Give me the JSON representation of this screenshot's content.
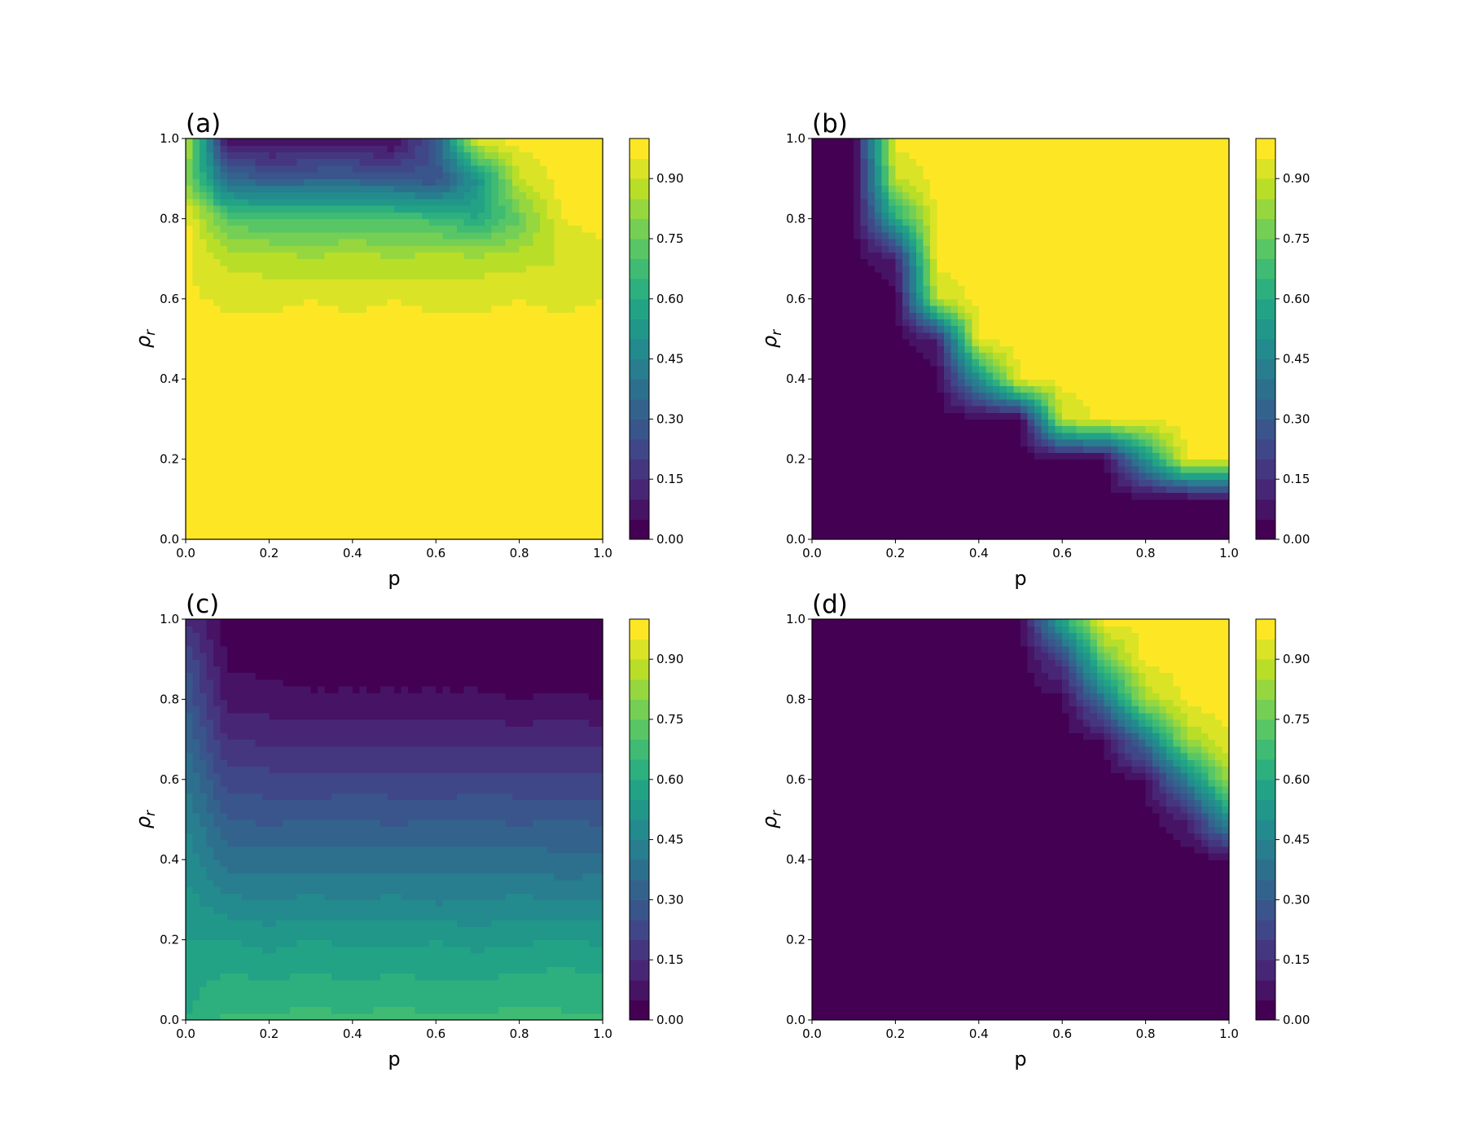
{
  "chart_data": [
    {
      "type": "contour",
      "title": "(a)",
      "xlabel": "p",
      "ylabel": {
        "text": "ρ",
        "sub": "r"
      },
      "colormap": "viridis",
      "x": [
        0,
        0.1,
        0.2,
        0.3,
        0.4,
        0.5,
        0.6,
        0.7,
        0.8,
        0.9,
        1.0
      ],
      "y": [
        0,
        0.1,
        0.2,
        0.3,
        0.4,
        0.5,
        0.6,
        0.7,
        0.8,
        0.9,
        1.0
      ],
      "z": [
        [
          0.97,
          0.97,
          0.97,
          0.97,
          0.97,
          0.97,
          0.97,
          0.97,
          0.97,
          0.97,
          0.97
        ],
        [
          0.97,
          0.97,
          0.97,
          0.97,
          0.97,
          0.97,
          0.97,
          0.97,
          0.97,
          0.97,
          0.97
        ],
        [
          0.97,
          0.97,
          0.97,
          0.97,
          0.97,
          0.97,
          0.97,
          0.97,
          0.97,
          0.97,
          0.97
        ],
        [
          0.97,
          0.97,
          0.97,
          0.97,
          0.97,
          0.97,
          0.97,
          0.97,
          0.97,
          0.97,
          0.97
        ],
        [
          0.97,
          0.97,
          0.97,
          0.97,
          0.97,
          0.97,
          0.97,
          0.97,
          0.97,
          0.97,
          0.97
        ],
        [
          0.97,
          0.97,
          0.97,
          0.97,
          0.97,
          0.97,
          0.97,
          0.97,
          0.97,
          0.97,
          0.97
        ],
        [
          0.96,
          0.94,
          0.94,
          0.95,
          0.94,
          0.95,
          0.94,
          0.94,
          0.95,
          0.94,
          0.95
        ],
        [
          0.96,
          0.88,
          0.87,
          0.86,
          0.87,
          0.86,
          0.87,
          0.87,
          0.88,
          0.9,
          0.93
        ],
        [
          0.97,
          0.72,
          0.7,
          0.7,
          0.71,
          0.7,
          0.68,
          0.6,
          0.75,
          0.95,
          0.97
        ],
        [
          0.8,
          0.35,
          0.3,
          0.32,
          0.32,
          0.3,
          0.25,
          0.5,
          0.9,
          0.97,
          0.97
        ],
        [
          0.9,
          0.05,
          0.04,
          0.04,
          0.04,
          0.03,
          0.3,
          0.95,
          0.97,
          0.97,
          0.97
        ]
      ],
      "xlim": [
        0,
        1.0
      ],
      "ylim": [
        0,
        1.0
      ],
      "xticks": [
        {
          "value": 0,
          "label": "0.0"
        },
        {
          "value": 0.2,
          "label": "0.2"
        },
        {
          "value": 0.4,
          "label": "0.4"
        },
        {
          "value": 0.6,
          "label": "0.6"
        },
        {
          "value": 0.8,
          "label": "0.8"
        },
        {
          "value": 1.0,
          "label": "1.0"
        }
      ],
      "yticks": [
        {
          "value": 0,
          "label": "0.0"
        },
        {
          "value": 0.2,
          "label": "0.2"
        },
        {
          "value": 0.4,
          "label": "0.4"
        },
        {
          "value": 0.6,
          "label": "0.6"
        },
        {
          "value": 0.8,
          "label": "0.8"
        },
        {
          "value": 1.0,
          "label": "1.0"
        }
      ],
      "levels": [
        0,
        0.05,
        0.1,
        0.15,
        0.2,
        0.25,
        0.3,
        0.35,
        0.4,
        0.45,
        0.5,
        0.55,
        0.6,
        0.65,
        0.7,
        0.75,
        0.8,
        0.85,
        0.9,
        0.95,
        1.0
      ],
      "colorbar_ticks": [
        {
          "value": 0,
          "label": "0.00"
        },
        {
          "value": 0.15,
          "label": "0.15"
        },
        {
          "value": 0.3,
          "label": "0.30"
        },
        {
          "value": 0.45,
          "label": "0.45"
        },
        {
          "value": 0.6,
          "label": "0.60"
        },
        {
          "value": 0.75,
          "label": "0.75"
        },
        {
          "value": 0.9,
          "label": "0.90"
        }
      ]
    },
    {
      "type": "contour",
      "title": "(b)",
      "xlabel": "p",
      "ylabel": {
        "text": "ρ",
        "sub": "r"
      },
      "colormap": "viridis",
      "x": [
        0,
        0.1,
        0.2,
        0.3,
        0.4,
        0.5,
        0.6,
        0.7,
        0.8,
        0.9,
        1.0
      ],
      "y": [
        0,
        0.1,
        0.2,
        0.3,
        0.4,
        0.5,
        0.6,
        0.7,
        0.8,
        0.9,
        1.0
      ],
      "z": [
        [
          0.02,
          0.02,
          0.02,
          0.02,
          0.02,
          0.02,
          0.02,
          0.02,
          0.02,
          0.02,
          0.02
        ],
        [
          0.02,
          0.02,
          0.02,
          0.02,
          0.02,
          0.02,
          0.02,
          0.02,
          0.02,
          0.02,
          0.05
        ],
        [
          0.02,
          0.02,
          0.02,
          0.02,
          0.02,
          0.02,
          0.02,
          0.02,
          0.5,
          0.97,
          0.97
        ],
        [
          0.02,
          0.02,
          0.02,
          0.02,
          0.02,
          0.02,
          0.9,
          0.97,
          0.97,
          0.97,
          0.97
        ],
        [
          0.02,
          0.02,
          0.02,
          0.02,
          0.5,
          0.97,
          0.97,
          0.97,
          0.97,
          0.97,
          0.97
        ],
        [
          0.02,
          0.02,
          0.02,
          0.1,
          0.97,
          0.97,
          0.97,
          0.97,
          0.97,
          0.97,
          0.97
        ],
        [
          0.02,
          0.02,
          0.02,
          0.9,
          0.97,
          0.97,
          0.97,
          0.97,
          0.97,
          0.97,
          0.97
        ],
        [
          0.02,
          0.02,
          0.1,
          0.97,
          0.97,
          0.97,
          0.97,
          0.97,
          0.97,
          0.97,
          0.97
        ],
        [
          0.02,
          0.02,
          0.6,
          0.97,
          0.97,
          0.97,
          0.97,
          0.97,
          0.97,
          0.97,
          0.97
        ],
        [
          0.02,
          0.02,
          0.9,
          0.97,
          0.97,
          0.97,
          0.97,
          0.97,
          0.97,
          0.97,
          0.97
        ],
        [
          0.02,
          0.02,
          0.97,
          0.97,
          0.97,
          0.97,
          0.97,
          0.97,
          0.97,
          0.97,
          0.97
        ]
      ],
      "xlim": [
        0,
        1.0
      ],
      "ylim": [
        0,
        1.0
      ],
      "xticks": [
        {
          "value": 0,
          "label": "0.0"
        },
        {
          "value": 0.2,
          "label": "0.2"
        },
        {
          "value": 0.4,
          "label": "0.4"
        },
        {
          "value": 0.6,
          "label": "0.6"
        },
        {
          "value": 0.8,
          "label": "0.8"
        },
        {
          "value": 1.0,
          "label": "1.0"
        }
      ],
      "yticks": [
        {
          "value": 0,
          "label": "0.0"
        },
        {
          "value": 0.2,
          "label": "0.2"
        },
        {
          "value": 0.4,
          "label": "0.4"
        },
        {
          "value": 0.6,
          "label": "0.6"
        },
        {
          "value": 0.8,
          "label": "0.8"
        },
        {
          "value": 1.0,
          "label": "1.0"
        }
      ],
      "levels": [
        0,
        0.05,
        0.1,
        0.15,
        0.2,
        0.25,
        0.3,
        0.35,
        0.4,
        0.45,
        0.5,
        0.55,
        0.6,
        0.65,
        0.7,
        0.75,
        0.8,
        0.85,
        0.9,
        0.95,
        1.0
      ],
      "colorbar_ticks": [
        {
          "value": 0,
          "label": "0.00"
        },
        {
          "value": 0.15,
          "label": "0.15"
        },
        {
          "value": 0.3,
          "label": "0.30"
        },
        {
          "value": 0.45,
          "label": "0.45"
        },
        {
          "value": 0.6,
          "label": "0.60"
        },
        {
          "value": 0.75,
          "label": "0.75"
        },
        {
          "value": 0.9,
          "label": "0.90"
        }
      ]
    },
    {
      "type": "contour",
      "title": "(c)",
      "xlabel": "p",
      "ylabel": {
        "text": "ρ",
        "sub": "r"
      },
      "colormap": "viridis",
      "x": [
        0,
        0.1,
        0.2,
        0.3,
        0.4,
        0.5,
        0.6,
        0.7,
        0.8,
        0.9,
        1.0
      ],
      "y": [
        0,
        0.1,
        0.2,
        0.3,
        0.4,
        0.5,
        0.6,
        0.7,
        0.8,
        0.9,
        1.0
      ],
      "z": [
        [
          0.6,
          0.66,
          0.66,
          0.67,
          0.66,
          0.67,
          0.66,
          0.66,
          0.67,
          0.66,
          0.66
        ],
        [
          0.58,
          0.61,
          0.6,
          0.61,
          0.6,
          0.61,
          0.6,
          0.6,
          0.61,
          0.62,
          0.61
        ],
        [
          0.55,
          0.55,
          0.53,
          0.55,
          0.54,
          0.53,
          0.55,
          0.53,
          0.54,
          0.55,
          0.54
        ],
        [
          0.52,
          0.46,
          0.45,
          0.46,
          0.45,
          0.46,
          0.44,
          0.45,
          0.46,
          0.45,
          0.45
        ],
        [
          0.48,
          0.38,
          0.37,
          0.38,
          0.38,
          0.37,
          0.38,
          0.37,
          0.38,
          0.36,
          0.37
        ],
        [
          0.45,
          0.3,
          0.29,
          0.3,
          0.3,
          0.29,
          0.3,
          0.3,
          0.29,
          0.3,
          0.29
        ],
        [
          0.4,
          0.22,
          0.22,
          0.21,
          0.22,
          0.22,
          0.21,
          0.22,
          0.22,
          0.21,
          0.22
        ],
        [
          0.35,
          0.15,
          0.14,
          0.14,
          0.13,
          0.14,
          0.14,
          0.14,
          0.13,
          0.14,
          0.13
        ],
        [
          0.3,
          0.08,
          0.07,
          0.06,
          0.06,
          0.06,
          0.06,
          0.06,
          0.05,
          0.06,
          0.05
        ],
        [
          0.25,
          0.04,
          0.03,
          0.02,
          0.02,
          0.02,
          0.02,
          0.02,
          0.02,
          0.02,
          0.02
        ],
        [
          0.15,
          0.02,
          0.02,
          0.02,
          0.02,
          0.02,
          0.02,
          0.02,
          0.02,
          0.02,
          0.02
        ]
      ],
      "xlim": [
        0,
        1.0
      ],
      "ylim": [
        0,
        1.0
      ],
      "xticks": [
        {
          "value": 0,
          "label": "0.0"
        },
        {
          "value": 0.2,
          "label": "0.2"
        },
        {
          "value": 0.4,
          "label": "0.4"
        },
        {
          "value": 0.6,
          "label": "0.6"
        },
        {
          "value": 0.8,
          "label": "0.8"
        },
        {
          "value": 1.0,
          "label": "1.0"
        }
      ],
      "yticks": [
        {
          "value": 0,
          "label": "0.0"
        },
        {
          "value": 0.2,
          "label": "0.2"
        },
        {
          "value": 0.4,
          "label": "0.4"
        },
        {
          "value": 0.6,
          "label": "0.6"
        },
        {
          "value": 0.8,
          "label": "0.8"
        },
        {
          "value": 1.0,
          "label": "1.0"
        }
      ],
      "levels": [
        0,
        0.05,
        0.1,
        0.15,
        0.2,
        0.25,
        0.3,
        0.35,
        0.4,
        0.45,
        0.5,
        0.55,
        0.6,
        0.65,
        0.7,
        0.75,
        0.8,
        0.85,
        0.9,
        0.95,
        1.0
      ],
      "colorbar_ticks": [
        {
          "value": 0,
          "label": "0.00"
        },
        {
          "value": 0.15,
          "label": "0.15"
        },
        {
          "value": 0.3,
          "label": "0.30"
        },
        {
          "value": 0.45,
          "label": "0.45"
        },
        {
          "value": 0.6,
          "label": "0.60"
        },
        {
          "value": 0.75,
          "label": "0.75"
        },
        {
          "value": 0.9,
          "label": "0.90"
        }
      ]
    },
    {
      "type": "contour",
      "title": "(d)",
      "xlabel": "p",
      "ylabel": {
        "text": "ρ",
        "sub": "r"
      },
      "colormap": "viridis",
      "x": [
        0,
        0.1,
        0.2,
        0.3,
        0.4,
        0.5,
        0.6,
        0.7,
        0.8,
        0.9,
        1.0
      ],
      "y": [
        0,
        0.1,
        0.2,
        0.3,
        0.4,
        0.5,
        0.6,
        0.7,
        0.8,
        0.9,
        1.0
      ],
      "z": [
        [
          0.02,
          0.02,
          0.02,
          0.02,
          0.02,
          0.02,
          0.02,
          0.02,
          0.02,
          0.02,
          0.02
        ],
        [
          0.02,
          0.02,
          0.02,
          0.02,
          0.02,
          0.02,
          0.02,
          0.02,
          0.02,
          0.02,
          0.02
        ],
        [
          0.02,
          0.02,
          0.02,
          0.02,
          0.02,
          0.02,
          0.02,
          0.02,
          0.02,
          0.02,
          0.02
        ],
        [
          0.02,
          0.02,
          0.02,
          0.02,
          0.02,
          0.02,
          0.02,
          0.02,
          0.02,
          0.02,
          0.02
        ],
        [
          0.02,
          0.02,
          0.02,
          0.02,
          0.02,
          0.02,
          0.02,
          0.02,
          0.02,
          0.02,
          0.03
        ],
        [
          0.02,
          0.02,
          0.02,
          0.02,
          0.02,
          0.02,
          0.02,
          0.02,
          0.02,
          0.1,
          0.5
        ],
        [
          0.02,
          0.02,
          0.02,
          0.02,
          0.02,
          0.02,
          0.02,
          0.02,
          0.05,
          0.45,
          0.85
        ],
        [
          0.02,
          0.02,
          0.02,
          0.02,
          0.02,
          0.02,
          0.02,
          0.05,
          0.4,
          0.85,
          0.95
        ],
        [
          0.02,
          0.02,
          0.02,
          0.02,
          0.02,
          0.02,
          0.03,
          0.4,
          0.85,
          0.97,
          0.97
        ],
        [
          0.02,
          0.02,
          0.02,
          0.02,
          0.02,
          0.02,
          0.2,
          0.75,
          0.97,
          0.97,
          0.97
        ],
        [
          0.02,
          0.02,
          0.02,
          0.02,
          0.02,
          0.03,
          0.6,
          0.97,
          0.97,
          0.97,
          0.97
        ]
      ],
      "xlim": [
        0,
        1.0
      ],
      "ylim": [
        0,
        1.0
      ],
      "xticks": [
        {
          "value": 0,
          "label": "0.0"
        },
        {
          "value": 0.2,
          "label": "0.2"
        },
        {
          "value": 0.4,
          "label": "0.4"
        },
        {
          "value": 0.6,
          "label": "0.6"
        },
        {
          "value": 0.8,
          "label": "0.8"
        },
        {
          "value": 1.0,
          "label": "1.0"
        }
      ],
      "yticks": [
        {
          "value": 0,
          "label": "0.0"
        },
        {
          "value": 0.2,
          "label": "0.2"
        },
        {
          "value": 0.4,
          "label": "0.4"
        },
        {
          "value": 0.6,
          "label": "0.6"
        },
        {
          "value": 0.8,
          "label": "0.8"
        },
        {
          "value": 1.0,
          "label": "1.0"
        }
      ],
      "levels": [
        0,
        0.05,
        0.1,
        0.15,
        0.2,
        0.25,
        0.3,
        0.35,
        0.4,
        0.45,
        0.5,
        0.55,
        0.6,
        0.65,
        0.7,
        0.75,
        0.8,
        0.85,
        0.9,
        0.95,
        1.0
      ],
      "colorbar_ticks": [
        {
          "value": 0,
          "label": "0.00"
        },
        {
          "value": 0.15,
          "label": "0.15"
        },
        {
          "value": 0.3,
          "label": "0.30"
        },
        {
          "value": 0.45,
          "label": "0.45"
        },
        {
          "value": 0.6,
          "label": "0.60"
        },
        {
          "value": 0.75,
          "label": "0.75"
        },
        {
          "value": 0.9,
          "label": "0.90"
        }
      ]
    }
  ]
}
